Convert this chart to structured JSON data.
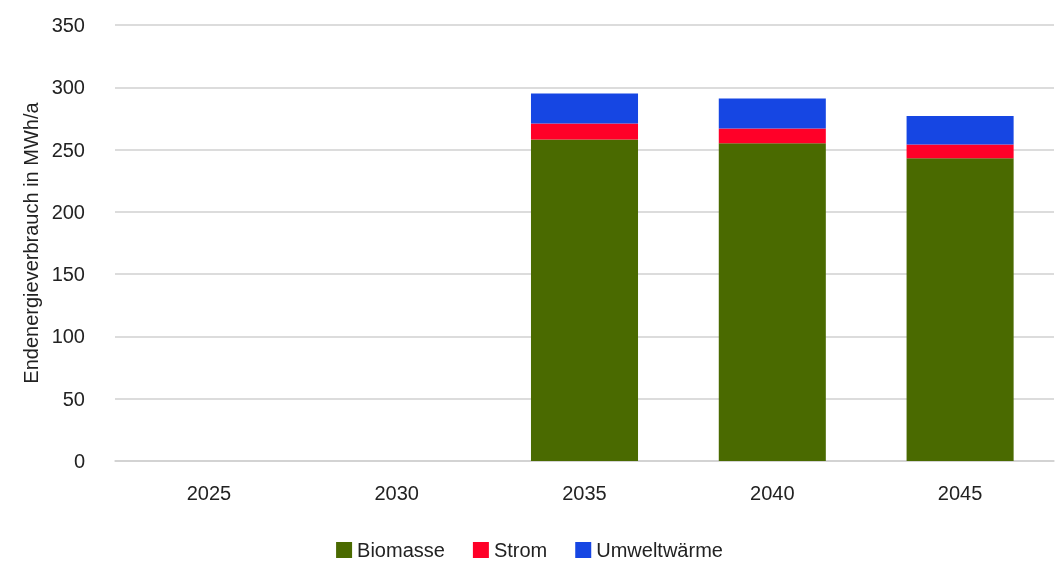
{
  "chart_data": {
    "type": "bar",
    "stacked": true,
    "ylabel": "Endenergieverbrauch in MWh/a",
    "categories": [
      "2025",
      "2030",
      "2035",
      "2040",
      "2045"
    ],
    "series": [
      {
        "name": "Biomasse",
        "color": "#4a6a00",
        "values": [
          null,
          null,
          258,
          255,
          243
        ]
      },
      {
        "name": "Strom",
        "color": "#ff0028",
        "values": [
          null,
          null,
          13,
          12,
          11
        ]
      },
      {
        "name": "Umweltwärme",
        "color": "#1646e3",
        "values": [
          null,
          null,
          24,
          24,
          23
        ]
      }
    ],
    "ylim": [
      0,
      350
    ],
    "yticks": [
      0,
      50,
      100,
      150,
      200,
      250,
      300,
      350
    ],
    "grid": "y",
    "legend": "bottom"
  }
}
